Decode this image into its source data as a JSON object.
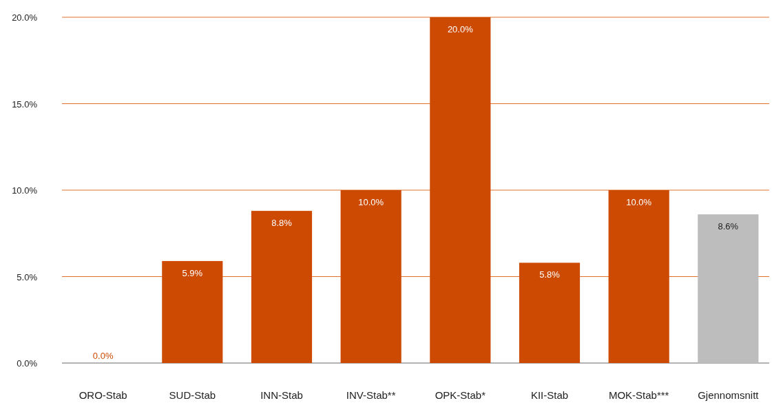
{
  "chart_data": {
    "type": "bar",
    "categories": [
      "ORO-Stab",
      "SUD-Stab",
      "INN-Stab",
      "INV-Stab**",
      "OPK-Stab*",
      "KII-Stab",
      "MOK-Stab***",
      "Gjennomsnitt"
    ],
    "values": [
      0,
      5.9,
      8.8,
      10,
      20,
      5.8,
      10,
      8.6
    ],
    "colors": [
      "#cc4a02",
      "#cc4a02",
      "#cc4a02",
      "#cc4a02",
      "#cc4a02",
      "#cc4a02",
      "#cc4a02",
      "#bdbdbd"
    ],
    "value_labels": [
      "0.0%",
      "5.9%",
      "8.8%",
      "10.0%",
      "20.0%",
      "5.8%",
      "10.0%",
      "8.6%"
    ],
    "ylim": [
      0,
      20
    ],
    "yticks": [
      {
        "value": 0,
        "label": "0.0%"
      },
      {
        "value": 5,
        "label": "5.0%"
      },
      {
        "value": 10,
        "label": "10.0%"
      },
      {
        "value": 15,
        "label": "15.0%"
      },
      {
        "value": 20,
        "label": "20.0%"
      }
    ],
    "grid": "y"
  }
}
